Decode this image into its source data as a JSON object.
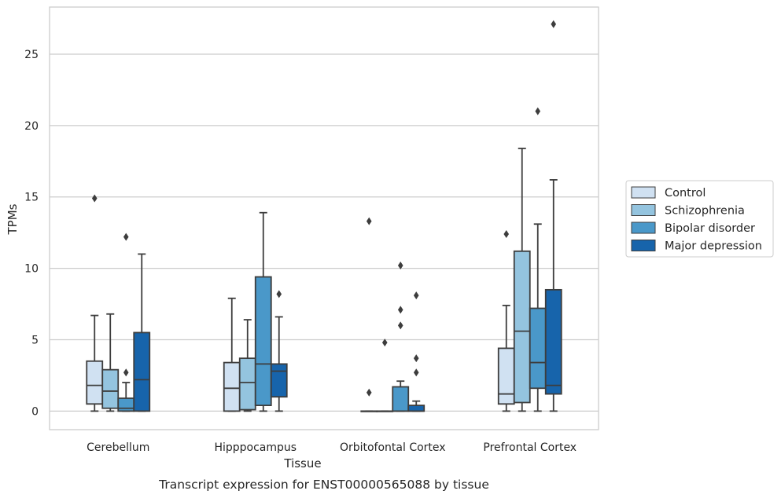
{
  "chart_data": {
    "type": "box",
    "xlabel": "Tissue",
    "ylabel": "TPMs",
    "caption": "Transcript expression for ENST00000565088 by tissue",
    "ylim": [
      -1.3,
      28.3
    ],
    "yticks": [
      0,
      5,
      10,
      15,
      20,
      25
    ],
    "grid": "horizontal",
    "legend_position": "right",
    "categories": [
      "Cerebellum",
      "Hipppocampus",
      "Orbitofontal Cortex",
      "Prefrontal Cortex"
    ],
    "series": [
      {
        "name": "Control",
        "color": "#d0e1f2",
        "boxes": [
          {
            "whisker_low": 0,
            "q1": 0.5,
            "median": 1.8,
            "q3": 3.5,
            "whisker_high": 6.7,
            "outliers": [
              14.9
            ]
          },
          {
            "whisker_low": 0,
            "q1": 0,
            "median": 1.6,
            "q3": 3.4,
            "whisker_high": 7.9,
            "outliers": []
          },
          {
            "whisker_low": 0,
            "q1": 0,
            "median": 0,
            "q3": 0,
            "whisker_high": 0,
            "outliers": [
              1.3,
              13.3
            ]
          },
          {
            "whisker_low": 0,
            "q1": 0.5,
            "median": 1.2,
            "q3": 4.4,
            "whisker_high": 7.4,
            "outliers": [
              12.4
            ]
          }
        ]
      },
      {
        "name": "Schizophrenia",
        "color": "#94c4df",
        "boxes": [
          {
            "whisker_low": 0,
            "q1": 0.2,
            "median": 1.4,
            "q3": 2.9,
            "whisker_high": 6.8,
            "outliers": []
          },
          {
            "whisker_low": 0,
            "q1": 0.1,
            "median": 2.0,
            "q3": 3.7,
            "whisker_high": 6.4,
            "outliers": []
          },
          {
            "whisker_low": 0,
            "q1": 0,
            "median": 0,
            "q3": 0,
            "whisker_high": 0,
            "outliers": [
              4.8
            ]
          },
          {
            "whisker_low": 0,
            "q1": 0.6,
            "median": 5.6,
            "q3": 11.2,
            "whisker_high": 18.4,
            "outliers": []
          }
        ]
      },
      {
        "name": "Bipolar disorder",
        "color": "#4a98c9",
        "boxes": [
          {
            "whisker_low": 0,
            "q1": 0,
            "median": 0.2,
            "q3": 0.9,
            "whisker_high": 2.0,
            "outliers": [
              2.7,
              12.2
            ]
          },
          {
            "whisker_low": 0,
            "q1": 0.4,
            "median": 3.3,
            "q3": 9.4,
            "whisker_high": 13.9,
            "outliers": []
          },
          {
            "whisker_low": 0,
            "q1": 0,
            "median": 0,
            "q3": 1.7,
            "whisker_high": 2.1,
            "outliers": [
              6.0,
              7.1,
              10.2
            ]
          },
          {
            "whisker_low": 0,
            "q1": 1.6,
            "median": 3.4,
            "q3": 7.2,
            "whisker_high": 13.1,
            "outliers": [
              21.0
            ]
          }
        ]
      },
      {
        "name": "Major depression",
        "color": "#1764ab",
        "boxes": [
          {
            "whisker_low": 0,
            "q1": 0,
            "median": 2.2,
            "q3": 5.5,
            "whisker_high": 11.0,
            "outliers": []
          },
          {
            "whisker_low": 0,
            "q1": 1.0,
            "median": 2.8,
            "q3": 3.3,
            "whisker_high": 6.6,
            "outliers": [
              8.2
            ]
          },
          {
            "whisker_low": 0,
            "q1": 0,
            "median": 0,
            "q3": 0.4,
            "whisker_high": 0.7,
            "outliers": [
              2.7,
              3.7,
              8.1
            ]
          },
          {
            "whisker_low": 0,
            "q1": 1.2,
            "median": 1.8,
            "q3": 8.5,
            "whisker_high": 16.2,
            "outliers": [
              27.1
            ]
          }
        ]
      }
    ]
  }
}
